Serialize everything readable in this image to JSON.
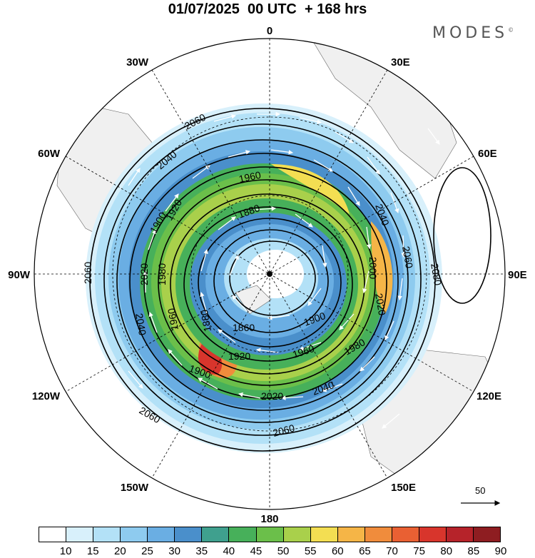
{
  "title": "01/07/2025  00 UTC  + 168 hrs",
  "brand": "MODES",
  "brand_mark": "©",
  "longitude_labels": {
    "lon_0": "0",
    "lon_30e": "30E",
    "lon_60e": "60E",
    "lon_90e": "90E",
    "lon_120e": "120E",
    "lon_150e": "150E",
    "lon_180": "180",
    "lon_150w": "150W",
    "lon_120w": "120W",
    "lon_90w": "90W",
    "lon_60w": "60W",
    "lon_30w": "30W"
  },
  "contour_labels": [
    "2060",
    "2040",
    "1960",
    "1900",
    "1920",
    "1880",
    "1980",
    "2020",
    "2060",
    "1960",
    "1880",
    "1860",
    "1900",
    "1920",
    "1960",
    "1900",
    "2020",
    "2040",
    "2060",
    "2000",
    "2040",
    "2060",
    "2080",
    "2060",
    "2040",
    "2020",
    "1980"
  ],
  "colorbar": {
    "ticks": [
      "10",
      "15",
      "20",
      "25",
      "30",
      "35",
      "40",
      "45",
      "50",
      "55",
      "60",
      "65",
      "70",
      "75",
      "80",
      "85",
      "90"
    ],
    "colors": [
      "#ffffff",
      "#d8f0fb",
      "#b3e1f7",
      "#8ecbef",
      "#6aaee3",
      "#4a8fcb",
      "#3fa08e",
      "#47b05a",
      "#6bbf4a",
      "#a9d04b",
      "#f3de52",
      "#f5b547",
      "#f08c3c",
      "#e96033",
      "#d8352c",
      "#b6232a",
      "#8e1d21"
    ]
  },
  "reference_vector": {
    "value": "50"
  },
  "colors": {
    "land": "#f2f2f2",
    "contour": "#000000",
    "wind_arrows": "#ffffff"
  }
}
